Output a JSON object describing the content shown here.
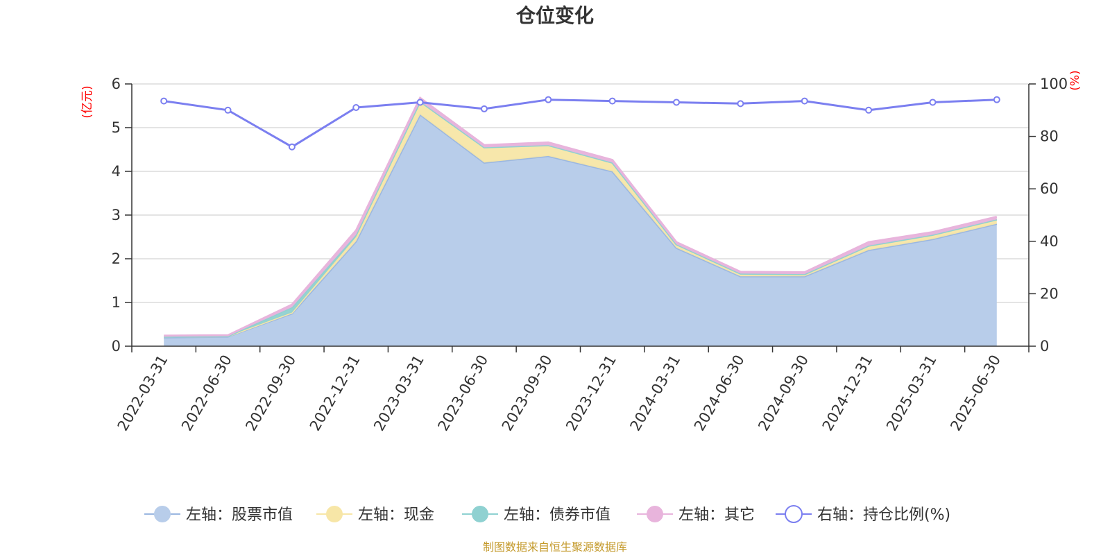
{
  "chart_data": {
    "type": "area",
    "title": "仓位变化",
    "left_unit": "(亿元)",
    "right_unit": "(%)",
    "categories": [
      "2022-03-31",
      "2022-06-30",
      "2022-09-30",
      "2022-12-31",
      "2023-03-31",
      "2023-06-30",
      "2023-09-30",
      "2023-12-31",
      "2024-03-31",
      "2024-06-30",
      "2024-09-30",
      "2024-12-31",
      "2025-03-31",
      "2025-06-30"
    ],
    "left_axis": {
      "min": 0,
      "max": 6,
      "ticks": [
        "0",
        "1",
        "2",
        "3",
        "4",
        "5",
        "6"
      ]
    },
    "right_axis": {
      "min": 0,
      "max": 100,
      "ticks": [
        "0",
        "20",
        "40",
        "60",
        "80",
        "100"
      ]
    },
    "series": [
      {
        "name": "左轴：股票市值",
        "color": "#9bb7e0",
        "fill": "#b8cdea",
        "stacked": true,
        "values": [
          0.2,
          0.22,
          0.75,
          2.4,
          5.3,
          4.2,
          4.35,
          4.0,
          2.25,
          1.6,
          1.6,
          2.2,
          2.45,
          2.8
        ]
      },
      {
        "name": "左轴：现金",
        "color": "#f7e6a7",
        "fill": "#f7e6a7",
        "stacked": true,
        "values": [
          0.02,
          0.01,
          0.02,
          0.1,
          0.3,
          0.35,
          0.25,
          0.2,
          0.08,
          0.06,
          0.05,
          0.1,
          0.1,
          0.1
        ]
      },
      {
        "name": "左轴：债券市值",
        "color": "#8fd1d1",
        "fill": "#8fd1d1",
        "stacked": true,
        "values": [
          0.0,
          0.0,
          0.12,
          0.05,
          0.0,
          0.0,
          0.0,
          0.0,
          0.0,
          0.0,
          0.0,
          0.0,
          0.0,
          0.0
        ]
      },
      {
        "name": "左轴：其它",
        "color": "#e8b4dc",
        "fill": "#e8b4dc",
        "stacked": true,
        "values": [
          0.02,
          0.02,
          0.06,
          0.1,
          0.08,
          0.05,
          0.06,
          0.06,
          0.05,
          0.04,
          0.04,
          0.08,
          0.06,
          0.06
        ]
      },
      {
        "name": "右轴：持仓比例(%)",
        "color": "#7b7ff0",
        "axis": "right",
        "type": "line",
        "values": [
          93.5,
          90.0,
          76.0,
          91.0,
          93.0,
          90.5,
          94.0,
          93.5,
          93.0,
          92.5,
          93.5,
          90.0,
          93.0,
          94.0
        ]
      }
    ],
    "grid": true,
    "legend_position": "bottom"
  },
  "footer": {
    "source": "制图数据来自恒生聚源数据库"
  }
}
